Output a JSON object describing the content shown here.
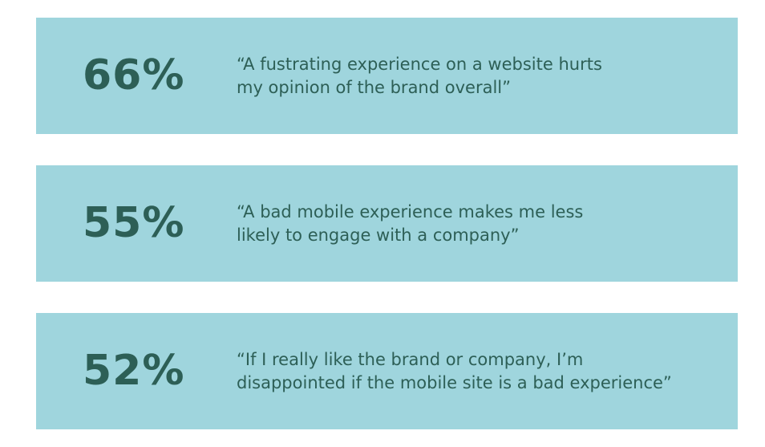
{
  "items": [
    {
      "stat": "66%",
      "quote": [
        "“A fustrating experience on a website hurts",
        "my opinion of the brand overall”"
      ]
    },
    {
      "stat": "55%",
      "quote": [
        "“A bad mobile experience makes me less",
        "likely to engage with a company”"
      ]
    },
    {
      "stat": "52%",
      "quote": [
        "“If I really like the brand or company, I’m",
        "disappointed if the mobile site is a bad experience”"
      ]
    }
  ]
}
